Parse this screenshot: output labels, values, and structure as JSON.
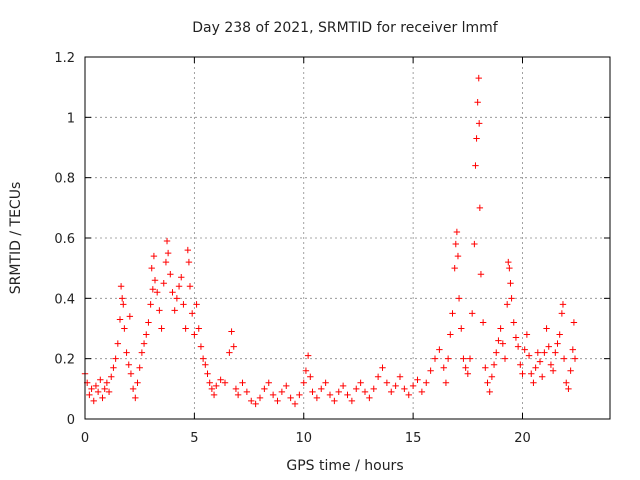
{
  "chart_data": {
    "type": "scatter",
    "title": "Day 238 of 2021, SRMTID for receiver lmmf",
    "xlabel": "GPS time / hours",
    "ylabel": "SRMTID / TECUs",
    "xlim": [
      0,
      24
    ],
    "ylim": [
      0,
      1.2
    ],
    "xticks": [
      0,
      5,
      10,
      15,
      20
    ],
    "xtick_labels": [
      "0",
      "5",
      "10",
      "15",
      "20"
    ],
    "yticks": [
      0,
      0.2,
      0.4,
      0.6,
      0.8,
      1.0,
      1.2
    ],
    "ytick_labels": [
      "0",
      "0.2",
      "0.4",
      "0.6",
      "0.8",
      "1",
      "1.2"
    ],
    "grid": true,
    "marker": "+",
    "color": "#ff0000",
    "series": [
      {
        "name": "SRMTID",
        "points": [
          [
            0.0,
            0.15
          ],
          [
            0.1,
            0.12
          ],
          [
            0.2,
            0.08
          ],
          [
            0.3,
            0.1
          ],
          [
            0.4,
            0.06
          ],
          [
            0.5,
            0.11
          ],
          [
            0.6,
            0.09
          ],
          [
            0.7,
            0.13
          ],
          [
            0.8,
            0.07
          ],
          [
            0.9,
            0.1
          ],
          [
            1.0,
            0.12
          ],
          [
            1.1,
            0.09
          ],
          [
            1.2,
            0.14
          ],
          [
            1.3,
            0.17
          ],
          [
            1.4,
            0.2
          ],
          [
            1.5,
            0.25
          ],
          [
            1.6,
            0.33
          ],
          [
            1.65,
            0.44
          ],
          [
            1.7,
            0.4
          ],
          [
            1.75,
            0.38
          ],
          [
            1.8,
            0.3
          ],
          [
            1.9,
            0.22
          ],
          [
            2.0,
            0.18
          ],
          [
            2.05,
            0.34
          ],
          [
            2.1,
            0.15
          ],
          [
            2.2,
            0.1
          ],
          [
            2.3,
            0.07
          ],
          [
            2.4,
            0.12
          ],
          [
            2.5,
            0.17
          ],
          [
            2.6,
            0.22
          ],
          [
            2.7,
            0.25
          ],
          [
            2.8,
            0.28
          ],
          [
            2.9,
            0.32
          ],
          [
            3.0,
            0.38
          ],
          [
            3.05,
            0.5
          ],
          [
            3.1,
            0.43
          ],
          [
            3.15,
            0.54
          ],
          [
            3.2,
            0.46
          ],
          [
            3.3,
            0.42
          ],
          [
            3.4,
            0.36
          ],
          [
            3.5,
            0.3
          ],
          [
            3.6,
            0.45
          ],
          [
            3.7,
            0.52
          ],
          [
            3.75,
            0.59
          ],
          [
            3.8,
            0.55
          ],
          [
            3.9,
            0.48
          ],
          [
            4.0,
            0.42
          ],
          [
            4.1,
            0.36
          ],
          [
            4.2,
            0.4
          ],
          [
            4.3,
            0.44
          ],
          [
            4.4,
            0.47
          ],
          [
            4.5,
            0.38
          ],
          [
            4.6,
            0.3
          ],
          [
            4.7,
            0.56
          ],
          [
            4.75,
            0.52
          ],
          [
            4.8,
            0.44
          ],
          [
            4.9,
            0.35
          ],
          [
            5.0,
            0.28
          ],
          [
            5.1,
            0.38
          ],
          [
            5.2,
            0.3
          ],
          [
            5.3,
            0.24
          ],
          [
            5.4,
            0.2
          ],
          [
            5.5,
            0.18
          ],
          [
            5.6,
            0.15
          ],
          [
            5.7,
            0.12
          ],
          [
            5.8,
            0.1
          ],
          [
            5.9,
            0.08
          ],
          [
            6.0,
            0.11
          ],
          [
            6.2,
            0.13
          ],
          [
            6.4,
            0.12
          ],
          [
            6.6,
            0.22
          ],
          [
            6.7,
            0.29
          ],
          [
            6.8,
            0.24
          ],
          [
            6.9,
            0.1
          ],
          [
            7.0,
            0.08
          ],
          [
            7.2,
            0.12
          ],
          [
            7.4,
            0.09
          ],
          [
            7.6,
            0.06
          ],
          [
            7.8,
            0.05
          ],
          [
            8.0,
            0.07
          ],
          [
            8.2,
            0.1
          ],
          [
            8.4,
            0.12
          ],
          [
            8.6,
            0.08
          ],
          [
            8.8,
            0.06
          ],
          [
            9.0,
            0.09
          ],
          [
            9.2,
            0.11
          ],
          [
            9.4,
            0.07
          ],
          [
            9.6,
            0.05
          ],
          [
            9.8,
            0.08
          ],
          [
            10.0,
            0.12
          ],
          [
            10.1,
            0.16
          ],
          [
            10.2,
            0.21
          ],
          [
            10.3,
            0.14
          ],
          [
            10.4,
            0.09
          ],
          [
            10.6,
            0.07
          ],
          [
            10.8,
            0.1
          ],
          [
            11.0,
            0.12
          ],
          [
            11.2,
            0.08
          ],
          [
            11.4,
            0.06
          ],
          [
            11.6,
            0.09
          ],
          [
            11.8,
            0.11
          ],
          [
            12.0,
            0.08
          ],
          [
            12.2,
            0.06
          ],
          [
            12.4,
            0.1
          ],
          [
            12.6,
            0.12
          ],
          [
            12.8,
            0.09
          ],
          [
            13.0,
            0.07
          ],
          [
            13.2,
            0.1
          ],
          [
            13.4,
            0.14
          ],
          [
            13.6,
            0.17
          ],
          [
            13.8,
            0.12
          ],
          [
            14.0,
            0.09
          ],
          [
            14.2,
            0.11
          ],
          [
            14.4,
            0.14
          ],
          [
            14.6,
            0.1
          ],
          [
            14.8,
            0.08
          ],
          [
            15.0,
            0.11
          ],
          [
            15.2,
            0.13
          ],
          [
            15.4,
            0.09
          ],
          [
            15.6,
            0.12
          ],
          [
            15.8,
            0.16
          ],
          [
            16.0,
            0.2
          ],
          [
            16.2,
            0.23
          ],
          [
            16.4,
            0.17
          ],
          [
            16.5,
            0.12
          ],
          [
            16.6,
            0.2
          ],
          [
            16.7,
            0.28
          ],
          [
            16.8,
            0.35
          ],
          [
            16.9,
            0.5
          ],
          [
            16.95,
            0.58
          ],
          [
            17.0,
            0.62
          ],
          [
            17.05,
            0.54
          ],
          [
            17.1,
            0.4
          ],
          [
            17.2,
            0.3
          ],
          [
            17.3,
            0.2
          ],
          [
            17.4,
            0.17
          ],
          [
            17.5,
            0.15
          ],
          [
            17.6,
            0.2
          ],
          [
            17.7,
            0.35
          ],
          [
            17.8,
            0.58
          ],
          [
            17.85,
            0.84
          ],
          [
            17.9,
            0.93
          ],
          [
            17.95,
            1.05
          ],
          [
            18.0,
            1.13
          ],
          [
            18.02,
            0.98
          ],
          [
            18.05,
            0.7
          ],
          [
            18.1,
            0.48
          ],
          [
            18.2,
            0.32
          ],
          [
            18.3,
            0.17
          ],
          [
            18.4,
            0.12
          ],
          [
            18.5,
            0.09
          ],
          [
            18.6,
            0.14
          ],
          [
            18.7,
            0.18
          ],
          [
            18.8,
            0.22
          ],
          [
            18.9,
            0.26
          ],
          [
            19.0,
            0.3
          ],
          [
            19.1,
            0.25
          ],
          [
            19.2,
            0.2
          ],
          [
            19.3,
            0.38
          ],
          [
            19.35,
            0.52
          ],
          [
            19.4,
            0.5
          ],
          [
            19.45,
            0.45
          ],
          [
            19.5,
            0.4
          ],
          [
            19.6,
            0.32
          ],
          [
            19.7,
            0.27
          ],
          [
            19.8,
            0.24
          ],
          [
            19.9,
            0.18
          ],
          [
            20.0,
            0.15
          ],
          [
            20.1,
            0.23
          ],
          [
            20.2,
            0.28
          ],
          [
            20.3,
            0.21
          ],
          [
            20.4,
            0.15
          ],
          [
            20.5,
            0.12
          ],
          [
            20.6,
            0.17
          ],
          [
            20.7,
            0.22
          ],
          [
            20.8,
            0.19
          ],
          [
            20.9,
            0.14
          ],
          [
            21.0,
            0.22
          ],
          [
            21.1,
            0.3
          ],
          [
            21.2,
            0.24
          ],
          [
            21.3,
            0.18
          ],
          [
            21.4,
            0.16
          ],
          [
            21.5,
            0.22
          ],
          [
            21.6,
            0.25
          ],
          [
            21.7,
            0.28
          ],
          [
            21.8,
            0.35
          ],
          [
            21.85,
            0.38
          ],
          [
            21.9,
            0.2
          ],
          [
            22.0,
            0.12
          ],
          [
            22.1,
            0.1
          ],
          [
            22.2,
            0.16
          ],
          [
            22.3,
            0.23
          ],
          [
            22.35,
            0.32
          ],
          [
            22.4,
            0.2
          ]
        ]
      }
    ]
  }
}
